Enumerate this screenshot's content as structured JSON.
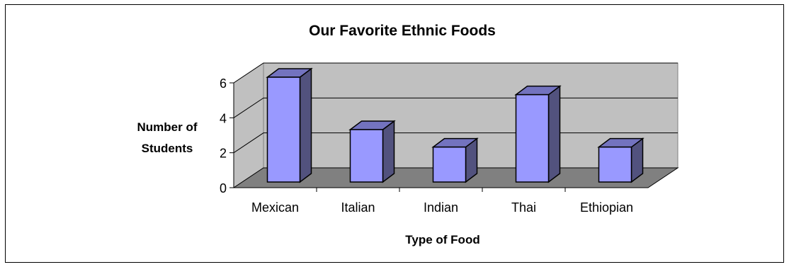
{
  "chart_data": {
    "type": "bar",
    "title": "Our Favorite Ethnic Foods",
    "xlabel": "Type of Food",
    "ylabel_lines": [
      "Number of",
      "Students"
    ],
    "categories": [
      "Mexican",
      "Italian",
      "Indian",
      "Thai",
      "Ethiopian"
    ],
    "values": [
      6,
      3,
      2,
      5,
      2
    ],
    "ylim": [
      0,
      6
    ],
    "yticks": [
      "0",
      "2",
      "4",
      "6"
    ],
    "grid": true,
    "three_d": true,
    "colors": {
      "bar_front": "#9999ff",
      "bar_side": "#52527e",
      "bar_top": "#7373bf",
      "back_wall": "#c0c0c0",
      "floor": "#808080",
      "side_wall": "#c0c0c0"
    }
  }
}
